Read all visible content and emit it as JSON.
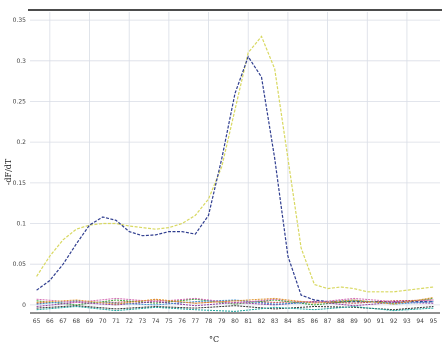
{
  "chart_data": {
    "type": "line",
    "title": "",
    "xlabel": "°C",
    "ylabel": "-dF/dT",
    "xlim": [
      64.5,
      95.5
    ],
    "ylim": [
      -0.01,
      0.36
    ],
    "xticks": [
      65,
      66,
      67,
      68,
      69,
      70,
      71,
      72,
      73,
      74,
      75,
      76,
      77,
      78,
      79,
      80,
      81,
      82,
      83,
      84,
      85,
      86,
      87,
      88,
      89,
      90,
      91,
      92,
      93,
      94,
      95
    ],
    "yticks": [
      0,
      0.05,
      0.1,
      0.15,
      0.2,
      0.25,
      0.3,
      0.35
    ],
    "grid": true,
    "legend": "none",
    "series": [
      {
        "color": "#d8d860",
        "x": [
          65,
          66,
          67,
          68,
          69,
          70,
          71,
          72,
          73,
          74,
          75,
          76,
          77,
          78,
          79,
          80,
          81,
          82,
          83,
          84,
          85,
          86,
          87,
          88,
          89,
          90,
          91,
          92,
          93,
          94,
          95
        ],
        "values": [
          0.035,
          0.06,
          0.08,
          0.093,
          0.098,
          0.1,
          0.1,
          0.097,
          0.095,
          0.093,
          0.095,
          0.1,
          0.11,
          0.13,
          0.17,
          0.24,
          0.31,
          0.33,
          0.29,
          0.18,
          0.07,
          0.025,
          0.02,
          0.022,
          0.02,
          0.016,
          0.016,
          0.016,
          0.018,
          0.02,
          0.022
        ]
      },
      {
        "color": "#2f3d8f",
        "x": [
          65,
          66,
          67,
          68,
          69,
          70,
          71,
          72,
          73,
          74,
          75,
          76,
          77,
          78,
          79,
          80,
          81,
          82,
          83,
          84,
          85,
          86,
          87,
          88,
          89,
          90,
          91,
          92,
          93,
          94,
          95
        ],
        "values": [
          0.018,
          0.03,
          0.05,
          0.075,
          0.098,
          0.108,
          0.104,
          0.09,
          0.085,
          0.086,
          0.09,
          0.09,
          0.087,
          0.11,
          0.18,
          0.26,
          0.305,
          0.28,
          0.18,
          0.06,
          0.012,
          0.006,
          0.004,
          0.004,
          0.004,
          0.004,
          0.004,
          0.004,
          0.004,
          0.004,
          0.004
        ]
      },
      {
        "color": "#c24a4a",
        "x": [
          65,
          68,
          71,
          74,
          77,
          80,
          83,
          86,
          89,
          92,
          95
        ],
        "values": [
          0.002,
          0.004,
          0.003,
          0.006,
          0.002,
          0.005,
          0.003,
          0.004,
          0.002,
          0.005,
          0.006
        ]
      },
      {
        "color": "#3aa33a",
        "x": [
          65,
          68,
          71,
          74,
          77,
          80,
          83,
          86,
          89,
          92,
          95
        ],
        "values": [
          0.005,
          0.0,
          0.006,
          0.002,
          0.007,
          0.001,
          0.006,
          0.0,
          0.005,
          0.002,
          0.008
        ]
      },
      {
        "color": "#8e3b9e",
        "x": [
          65,
          68,
          71,
          74,
          77,
          80,
          83,
          86,
          89,
          92,
          95
        ],
        "values": [
          -0.002,
          0.003,
          0.0,
          0.004,
          -0.001,
          0.003,
          0.0,
          0.004,
          -0.001,
          0.003,
          0.002
        ]
      },
      {
        "color": "#3b8fd0",
        "x": [
          65,
          68,
          71,
          74,
          77,
          80,
          83,
          86,
          89,
          92,
          95
        ],
        "values": [
          0.001,
          0.005,
          0.002,
          0.0,
          0.004,
          0.006,
          0.001,
          0.003,
          0.006,
          0.001,
          0.004
        ]
      },
      {
        "color": "#333333",
        "x": [
          65,
          68,
          71,
          74,
          77,
          80,
          83,
          86,
          89,
          92,
          95
        ],
        "values": [
          -0.004,
          -0.001,
          -0.005,
          -0.002,
          -0.004,
          -0.001,
          -0.005,
          -0.002,
          -0.003,
          -0.006,
          -0.002
        ]
      },
      {
        "color": "#d46ab4",
        "x": [
          65,
          68,
          71,
          74,
          77,
          80,
          83,
          86,
          89,
          92,
          95
        ],
        "values": [
          0.007,
          0.003,
          0.008,
          0.004,
          0.008,
          0.002,
          0.007,
          0.003,
          0.008,
          0.004,
          0.006
        ]
      },
      {
        "color": "#1fa59c",
        "x": [
          65,
          68,
          71,
          74,
          77,
          80,
          83,
          86,
          89,
          92,
          95
        ],
        "values": [
          -0.006,
          -0.002,
          -0.007,
          -0.003,
          -0.006,
          -0.008,
          -0.003,
          -0.006,
          -0.002,
          -0.007,
          -0.004
        ]
      },
      {
        "color": "#e0952e",
        "x": [
          65,
          68,
          71,
          74,
          77,
          80,
          83,
          86,
          89,
          92,
          95
        ],
        "values": [
          0.003,
          0.006,
          0.001,
          0.007,
          0.002,
          0.005,
          0.008,
          0.002,
          0.006,
          0.001,
          0.009
        ]
      }
    ]
  }
}
